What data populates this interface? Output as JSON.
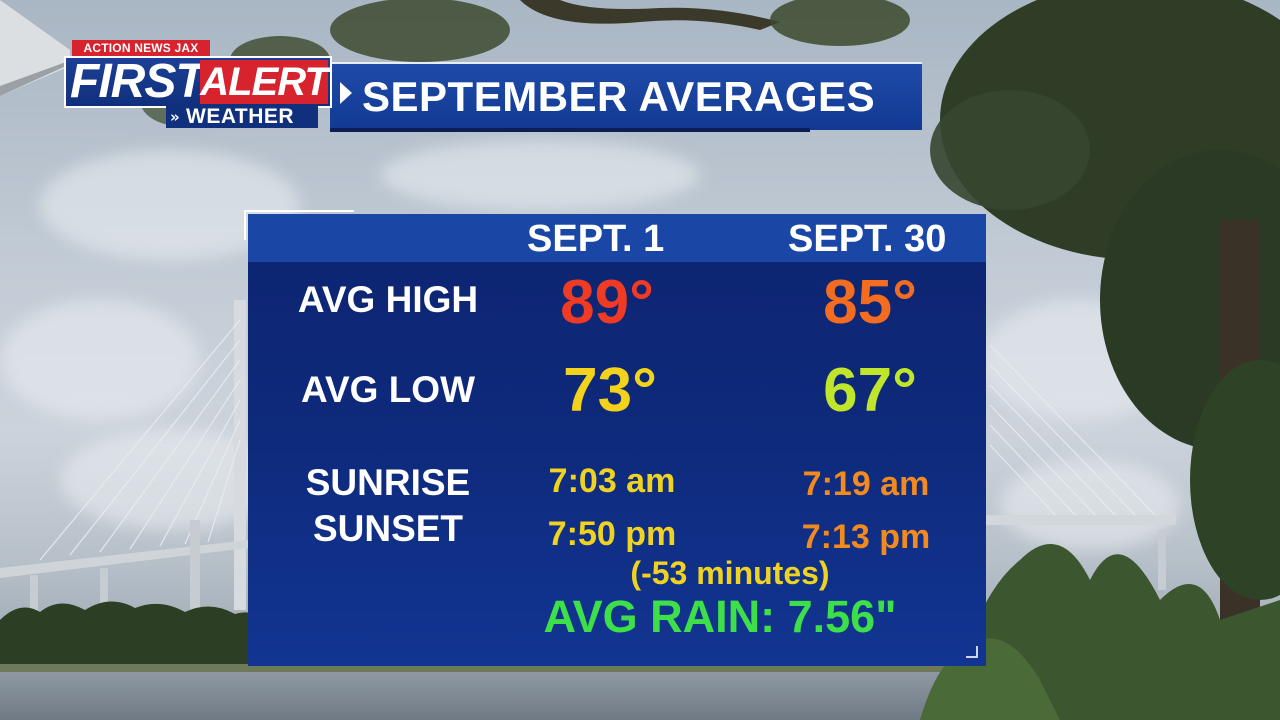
{
  "header": {
    "network": "ACTION NEWS JAX",
    "brand_first": "FIRST",
    "brand_alert": "ALERT",
    "brand_weather": "WEATHER",
    "title": "SEPTEMBER AVERAGES"
  },
  "table": {
    "columns": [
      "SEPT. 1",
      "SEPT. 30"
    ],
    "rows": {
      "avg_high": {
        "label": "AVG HIGH",
        "values": [
          "89°",
          "85°"
        ]
      },
      "avg_low": {
        "label": "AVG LOW",
        "values": [
          "73°",
          "67°"
        ]
      },
      "sunrise": {
        "label": "SUNRISE",
        "values": [
          "7:03 am",
          "7:19 am"
        ]
      },
      "sunset": {
        "label": "SUNSET",
        "values": [
          "7:50 pm",
          "7:13 pm"
        ]
      }
    },
    "daylight_change": "(-53 minutes)",
    "avg_rain": "AVG RAIN: 7.56\""
  },
  "colors": {
    "high_sept1": "#ef3a24",
    "high_sept30": "#f36c1f",
    "low_sept1": "#f2d21b",
    "low_sept30": "#bfe62a",
    "sun_sept1": "#f0d320",
    "sun_sept30": "#f38a1e",
    "rain": "#3ee04a",
    "panel": "#0e2a7c",
    "header_bar": "#1a47a6",
    "brand_red": "#d7232d"
  }
}
